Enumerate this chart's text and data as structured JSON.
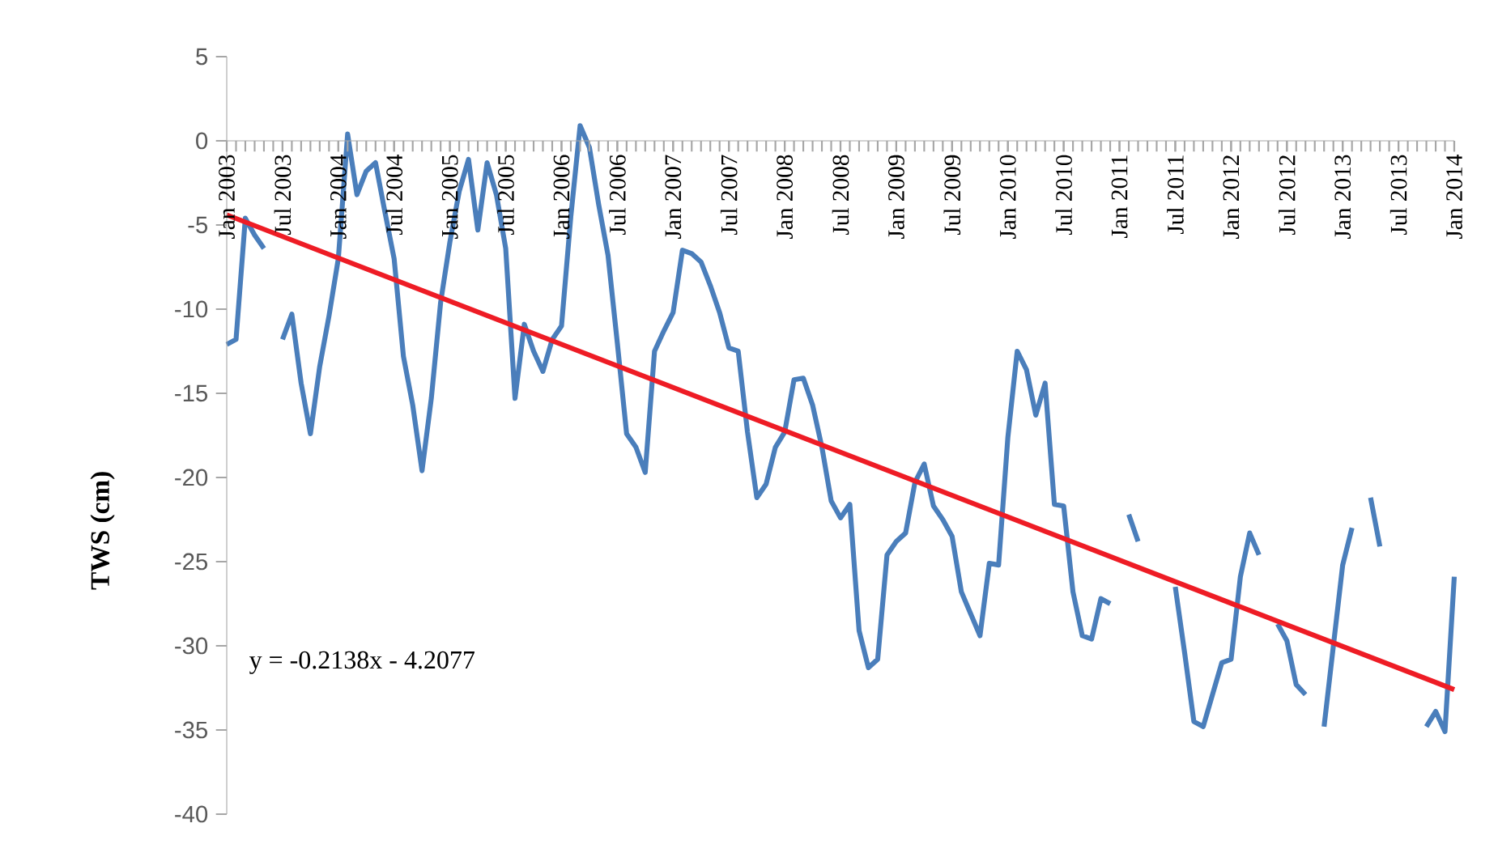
{
  "chart_data": {
    "type": "line",
    "ylabel": "TWS (cm)",
    "xlim": [
      "2003-01",
      "2014-01"
    ],
    "xticks": [
      {
        "value": "2003-01",
        "label": "Jan 2003"
      },
      {
        "value": "2003-07",
        "label": "Jul 2003"
      },
      {
        "value": "2004-01",
        "label": "Jan 2004"
      },
      {
        "value": "2004-07",
        "label": "Jul 2004"
      },
      {
        "value": "2005-01",
        "label": "Jan 2005"
      },
      {
        "value": "2005-07",
        "label": "Jul 2005"
      },
      {
        "value": "2006-01",
        "label": "Jan 2006"
      },
      {
        "value": "2006-07",
        "label": "Jul 2006"
      },
      {
        "value": "2007-01",
        "label": "Jan 2007"
      },
      {
        "value": "2007-07",
        "label": "Jul 2007"
      },
      {
        "value": "2008-01",
        "label": "Jan 2008"
      },
      {
        "value": "2008-07",
        "label": "Jul 2008"
      },
      {
        "value": "2009-01",
        "label": "Jan 2009"
      },
      {
        "value": "2009-07",
        "label": "Jul 2009"
      },
      {
        "value": "2010-01",
        "label": "Jan 2010"
      },
      {
        "value": "2010-07",
        "label": "Jul 2010"
      },
      {
        "value": "2011-01",
        "label": "Jan 2011"
      },
      {
        "value": "2011-07",
        "label": "Jul 2011"
      },
      {
        "value": "2012-01",
        "label": "Jan 2012"
      },
      {
        "value": "2012-07",
        "label": "Jul 2012"
      },
      {
        "value": "2013-01",
        "label": "Jan 2013"
      },
      {
        "value": "2013-07",
        "label": "Jul 2013"
      },
      {
        "value": "2014-01",
        "label": "Jan 2014"
      }
    ],
    "ylim": [
      -40,
      5
    ],
    "yticks": [
      -40,
      -35,
      -30,
      -25,
      -20,
      -15,
      -10,
      -5,
      0,
      5
    ],
    "line_style": "solid",
    "series": [
      {
        "color": "#4a7ebb",
        "x": [
          "2003-01",
          "2003-02",
          "2003-03",
          "2003-04",
          "2003-05",
          "2003-06",
          "2003-07",
          "2003-08",
          "2003-09",
          "2003-10",
          "2003-11",
          "2003-12",
          "2004-01",
          "2004-02",
          "2004-03",
          "2004-04",
          "2004-05",
          "2004-06",
          "2004-07",
          "2004-08",
          "2004-09",
          "2004-10",
          "2004-11",
          "2004-12",
          "2005-01",
          "2005-02",
          "2005-03",
          "2005-04",
          "2005-05",
          "2005-06",
          "2005-07",
          "2005-08",
          "2005-09",
          "2005-10",
          "2005-11",
          "2005-12",
          "2006-01",
          "2006-02",
          "2006-03",
          "2006-04",
          "2006-05",
          "2006-06",
          "2006-07",
          "2006-08",
          "2006-09",
          "2006-10",
          "2006-11",
          "2006-12",
          "2007-01",
          "2007-02",
          "2007-03",
          "2007-04",
          "2007-05",
          "2007-06",
          "2007-07",
          "2007-08",
          "2007-09",
          "2007-10",
          "2007-11",
          "2007-12",
          "2008-01",
          "2008-02",
          "2008-03",
          "2008-04",
          "2008-05",
          "2008-06",
          "2008-07",
          "2008-08",
          "2008-09",
          "2008-10",
          "2008-11",
          "2008-12",
          "2009-01",
          "2009-02",
          "2009-03",
          "2009-04",
          "2009-05",
          "2009-06",
          "2009-07",
          "2009-08",
          "2009-09",
          "2009-10",
          "2009-11",
          "2009-12",
          "2010-01",
          "2010-02",
          "2010-03",
          "2010-04",
          "2010-05",
          "2010-06",
          "2010-07",
          "2010-08",
          "2010-09",
          "2010-10",
          "2010-11",
          "2010-12",
          "2011-01",
          "2011-02",
          "2011-03",
          "2011-04",
          "2011-05",
          "2011-06",
          "2011-07",
          "2011-08",
          "2011-09",
          "2011-10",
          "2011-11",
          "2011-12",
          "2012-01",
          "2012-02",
          "2012-03",
          "2012-04",
          "2012-05",
          "2012-06",
          "2012-07",
          "2012-08",
          "2012-09",
          "2012-10",
          "2012-11",
          "2012-12",
          "2013-01",
          "2013-02",
          "2013-03",
          "2013-04",
          "2013-05",
          "2013-06",
          "2013-07",
          "2013-08",
          "2013-09",
          "2013-10",
          "2013-11",
          "2013-12",
          "2014-01"
        ],
        "values": [
          -12.1,
          -11.8,
          -4.6,
          -5.6,
          -6.4,
          null,
          -11.8,
          -10.3,
          -14.4,
          -17.4,
          -13.4,
          -10.4,
          -7.0,
          0.4,
          -3.2,
          -1.8,
          -1.3,
          -4.2,
          -7.0,
          -12.8,
          -15.7,
          -19.6,
          -15.3,
          -9.6,
          -6.0,
          -3.0,
          -1.1,
          -5.3,
          -1.3,
          -3.2,
          -6.4,
          -15.3,
          -10.9,
          -12.5,
          -13.7,
          -11.8,
          -11.0,
          -4.5,
          0.9,
          -0.4,
          -3.8,
          -6.8,
          -12.0,
          -17.4,
          -18.2,
          -19.7,
          -12.5,
          -11.3,
          -10.2,
          -6.5,
          -6.7,
          -7.2,
          -8.6,
          -10.2,
          -12.3,
          -12.5,
          -17.3,
          -21.2,
          -20.4,
          -18.2,
          -17.3,
          -14.2,
          -14.1,
          -15.7,
          -18.2,
          -21.4,
          -22.4,
          -21.6,
          -29.1,
          -31.3,
          -30.8,
          -24.6,
          -23.8,
          -23.3,
          -20.3,
          -19.2,
          -21.7,
          -22.5,
          -23.5,
          -26.8,
          -28.1,
          -29.4,
          -25.1,
          -25.2,
          -17.6,
          -12.5,
          -13.6,
          -16.3,
          -14.4,
          -21.6,
          -21.7,
          -26.8,
          -29.4,
          -29.6,
          -27.2,
          -27.5,
          null,
          -22.2,
          -23.8,
          null,
          null,
          null,
          -26.5,
          -30.4,
          -34.5,
          -34.8,
          -32.9,
          -31.0,
          -30.8,
          -25.9,
          -23.3,
          -24.6,
          null,
          -28.7,
          -29.7,
          -32.3,
          -32.9,
          null,
          -34.8,
          -30.0,
          -25.2,
          -23.0,
          null,
          -21.2,
          -24.1,
          null,
          null,
          null,
          null,
          -34.8,
          -33.9,
          -35.1,
          -25.9
        ]
      },
      {
        "color": "#ee1c25",
        "x": [
          "2003-01",
          "2014-01"
        ],
        "values": [
          -4.4,
          -32.6
        ]
      }
    ],
    "annotations": [
      "y = -0.2138x - 4.2077"
    ]
  }
}
